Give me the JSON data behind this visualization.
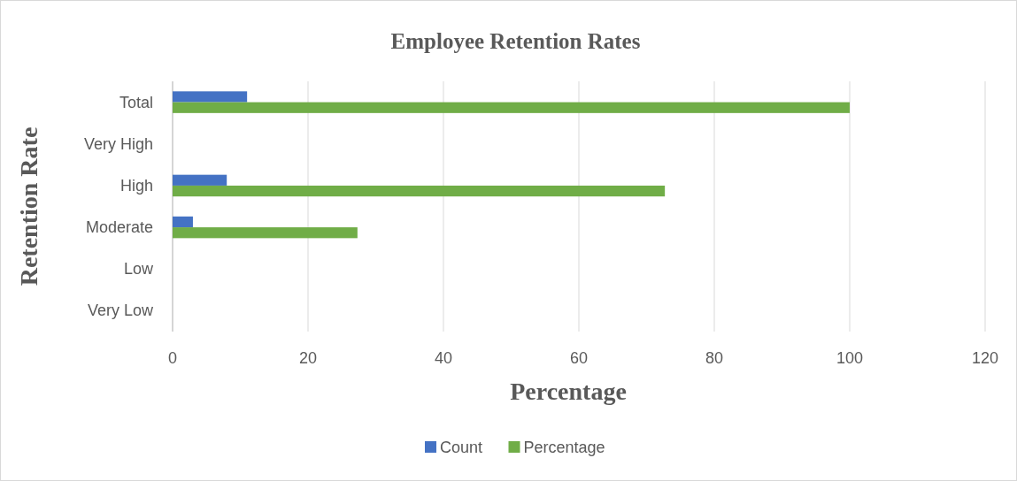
{
  "chart_data": {
    "type": "bar",
    "orientation": "horizontal",
    "title": "Employee Retention Rates",
    "xlabel": "Percentage",
    "ylabel": "Retention Rate",
    "categories": [
      "Total",
      "Very High",
      "High",
      "Moderate",
      "Low",
      "Very Low"
    ],
    "series": [
      {
        "name": "Count",
        "color": "#4472c4",
        "values": [
          11,
          0,
          8,
          3,
          0,
          0
        ]
      },
      {
        "name": "Percentage",
        "color": "#70ad47",
        "values": [
          100,
          0,
          72.7,
          27.3,
          0,
          0
        ]
      }
    ],
    "xlim": [
      0,
      120
    ],
    "xticks": [
      0,
      20,
      40,
      60,
      80,
      100,
      120
    ],
    "grid": "x",
    "legend": "bottom"
  }
}
